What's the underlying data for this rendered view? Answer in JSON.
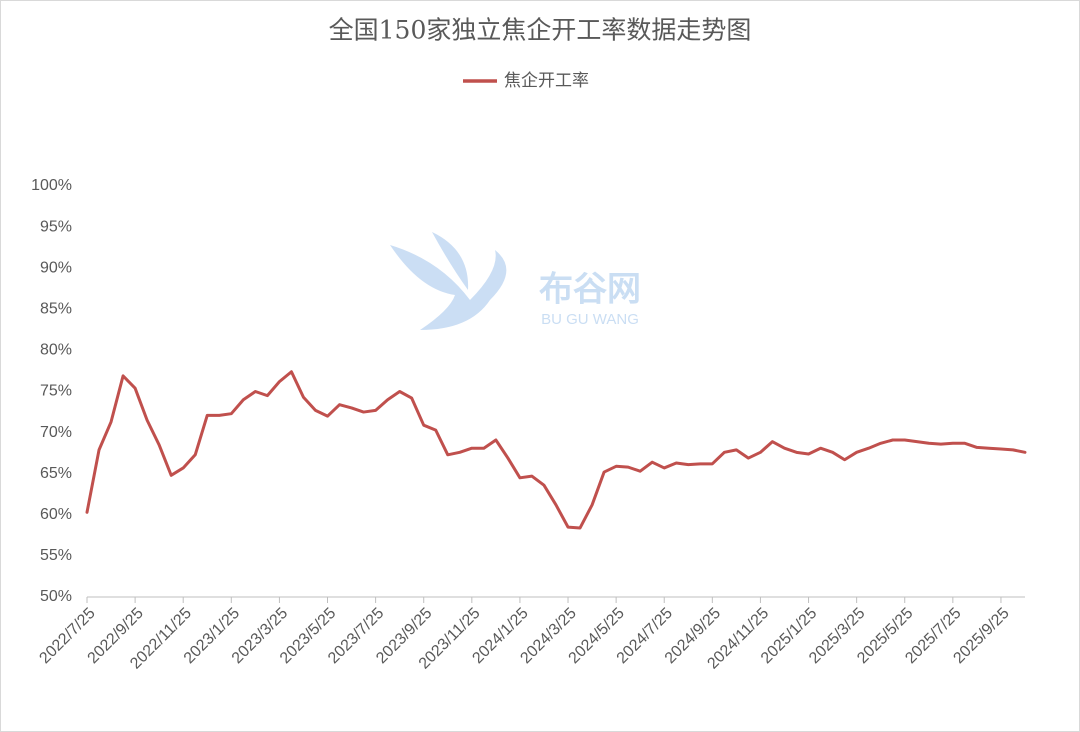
{
  "chart_data": {
    "type": "line",
    "title": "全国150家独立焦企开工率数据走势图",
    "watermark": {
      "name": "布谷网",
      "subtitle": "BU GU WANG"
    },
    "categories": [
      "2022/7/25",
      null,
      null,
      null,
      "2022/9/25",
      null,
      null,
      null,
      "2022/11/25",
      null,
      null,
      null,
      "2023/1/25",
      null,
      null,
      null,
      "2023/3/25",
      null,
      null,
      null,
      "2023/5/25",
      null,
      null,
      null,
      "2023/7/25",
      null,
      null,
      null,
      "2023/9/25",
      null,
      null,
      null,
      "2023/11/25",
      null,
      null,
      null,
      "2024/1/25",
      null,
      null,
      null,
      "2024/3/25",
      null,
      null,
      null,
      "2024/5/25",
      null,
      null,
      null,
      "2024/7/25",
      null,
      null,
      null,
      "2024/9/25",
      null,
      null,
      null,
      "2024/11/25",
      null,
      null,
      null,
      "2025/1/25",
      null,
      null,
      null,
      "2025/3/25",
      null,
      null,
      null,
      "2025/5/25",
      null,
      null,
      null,
      "2025/7/25",
      null,
      null,
      null,
      "2025/9/25",
      null,
      null
    ],
    "series": [
      {
        "name": "焦企开工率",
        "color": "#c0504d",
        "values": [
          60.3,
          67.9,
          71.3,
          76.9,
          75.4,
          71.5,
          68.5,
          64.8,
          65.7,
          67.3,
          72.1,
          72.1,
          72.3,
          74.0,
          75.0,
          74.5,
          76.2,
          77.4,
          74.3,
          72.7,
          72.0,
          73.4,
          73.0,
          72.5,
          72.7,
          74.0,
          75.0,
          74.2,
          70.9,
          70.3,
          67.3,
          67.6,
          68.1,
          68.1,
          69.1,
          66.9,
          64.5,
          64.7,
          63.6,
          61.2,
          58.5,
          58.4,
          61.2,
          65.2,
          65.9,
          65.8,
          65.3,
          66.4,
          65.7,
          66.3,
          66.1,
          66.2,
          66.2,
          67.6,
          67.9,
          66.9,
          67.6,
          68.9,
          68.1,
          67.6,
          67.4,
          68.1,
          67.6,
          66.7,
          67.6,
          68.1,
          68.7,
          69.1,
          69.1,
          68.9,
          68.7,
          68.6,
          68.7,
          68.7,
          68.2,
          68.1,
          68.0,
          67.9,
          67.6
        ]
      }
    ],
    "ylim": [
      50,
      100
    ],
    "yticks": [
      {
        "value": 50,
        "label": "50%"
      },
      {
        "value": 55,
        "label": "55%"
      },
      {
        "value": 60,
        "label": "60%"
      },
      {
        "value": 65,
        "label": "65%"
      },
      {
        "value": 70,
        "label": "70%"
      },
      {
        "value": 75,
        "label": "75%"
      },
      {
        "value": 80,
        "label": "80%"
      },
      {
        "value": 85,
        "label": "85%"
      },
      {
        "value": 90,
        "label": "90%"
      },
      {
        "value": 95,
        "label": "95%"
      },
      {
        "value": 100,
        "label": "100%"
      }
    ],
    "grid": false,
    "legend": "top"
  }
}
